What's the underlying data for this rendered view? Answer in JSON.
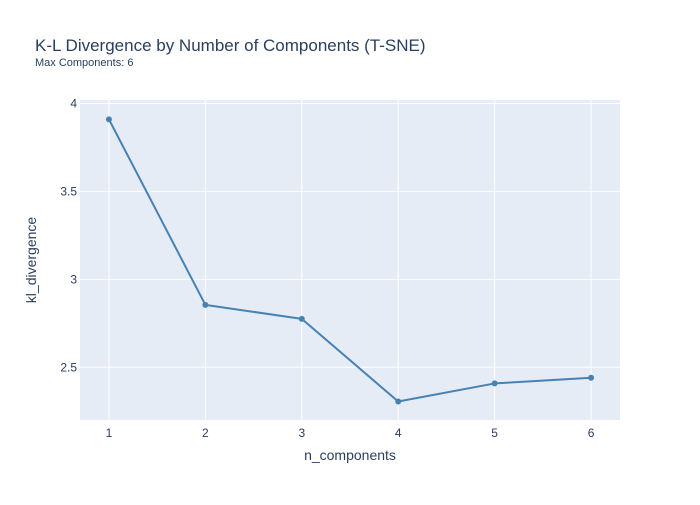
{
  "chart_data": {
    "type": "line",
    "title": "K-L Divergence by Number of Components (T-SNE)",
    "subtitle": "Max Components: 6",
    "xlabel": "n_components",
    "ylabel": "kl_divergence",
    "x": [
      1,
      2,
      3,
      4,
      5,
      6
    ],
    "series": [
      {
        "values": [
          3.91,
          2.855,
          2.775,
          2.305,
          2.408,
          2.44
        ]
      }
    ],
    "xlim": [
      0.7,
      6.3
    ],
    "ylim": [
      2.2,
      4.02
    ],
    "xticks": [
      1,
      2,
      3,
      4,
      5,
      6
    ],
    "xtick_labels": [
      "1",
      "2",
      "3",
      "4",
      "5",
      "6"
    ],
    "yticks": [
      2.5,
      3,
      3.5,
      4
    ],
    "ytick_labels": [
      "2.5",
      "3",
      "3.5",
      "4"
    ],
    "grid": true,
    "colors": {
      "line": "#4682b4",
      "plot_bg": "#e5ecf6",
      "grid": "#ffffff",
      "title_text": "#2a3f5f",
      "tick_text": "#2a3f5f"
    }
  }
}
